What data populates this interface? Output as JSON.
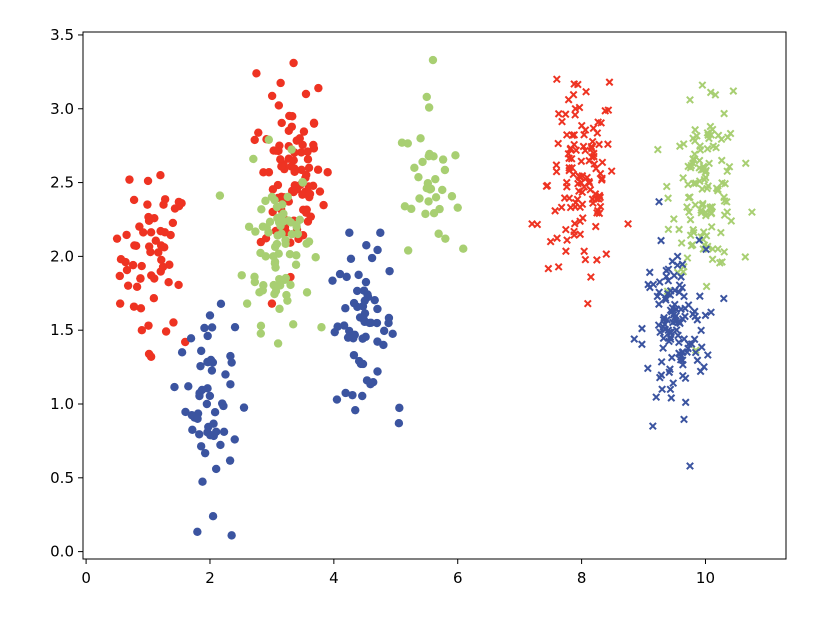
{
  "chart_data": {
    "type": "scatter",
    "title": "",
    "xlabel": "",
    "ylabel": "",
    "xlim": [
      -0.05,
      11.3
    ],
    "ylim": [
      -0.05,
      3.52
    ],
    "xticks": [
      "0",
      "2",
      "4",
      "6",
      "8",
      "10"
    ],
    "xtick_values": [
      0,
      2,
      4,
      6,
      8,
      10
    ],
    "yticks": [
      "0.0",
      "0.5",
      "1.0",
      "1.5",
      "2.0",
      "2.5",
      "3.0",
      "3.5"
    ],
    "ytick_values": [
      0.0,
      0.5,
      1.0,
      1.5,
      2.0,
      2.5,
      3.0,
      3.5
    ],
    "grid": false,
    "legend": "none",
    "series": [
      {
        "color": "#ee3322",
        "marker": "circle",
        "center": [
          1.1,
          2.0
        ],
        "spread": [
          0.3,
          0.28
        ],
        "count": 60,
        "x": [
          0.5,
          0.7,
          1.2,
          1.5,
          1.05,
          0.9,
          1.6,
          0.55,
          1.25,
          1.1
        ],
        "y": [
          2.12,
          2.52,
          2.55,
          2.34,
          1.32,
          1.5,
          1.42,
          1.68,
          2.35,
          1.85
        ]
      },
      {
        "color": "#ee3322",
        "marker": "circle",
        "center": [
          3.3,
          2.5
        ],
        "spread": [
          0.28,
          0.3
        ],
        "count": 90,
        "x": [
          2.75,
          3.35,
          3.55,
          3.75,
          3.3,
          3.0,
          3.9,
          3.45,
          3.2,
          3.6
        ],
        "y": [
          3.24,
          3.31,
          3.1,
          3.14,
          1.86,
          1.68,
          2.57,
          2.8,
          2.4,
          2.6
        ]
      },
      {
        "color": "#a8cf72",
        "marker": "circle",
        "center": [
          3.1,
          2.1
        ],
        "spread": [
          0.3,
          0.3
        ],
        "count": 75,
        "x": [
          2.7,
          2.95,
          3.5,
          3.8,
          3.1,
          3.25,
          2.6,
          3.4,
          2.9,
          3.6
        ],
        "y": [
          2.66,
          2.79,
          2.5,
          1.52,
          1.41,
          1.7,
          1.68,
          2.2,
          2.0,
          2.1
        ]
      },
      {
        "color": "#a8cf72",
        "marker": "circle",
        "center": [
          5.55,
          2.5
        ],
        "spread": [
          0.22,
          0.25
        ],
        "count": 35,
        "x": [
          5.6,
          5.5,
          5.1,
          5.2,
          5.8,
          6.0,
          5.4,
          5.75,
          5.3,
          5.65
        ],
        "y": [
          3.33,
          3.08,
          2.77,
          2.04,
          2.12,
          2.33,
          2.8,
          2.45,
          2.6,
          2.4
        ]
      },
      {
        "color": "#3b54a0",
        "marker": "circle",
        "center": [
          2.0,
          1.05
        ],
        "spread": [
          0.22,
          0.3
        ],
        "count": 55,
        "x": [
          2.0,
          2.35,
          2.05,
          1.55,
          2.1,
          1.65,
          2.4,
          1.8,
          2.25,
          1.95
        ],
        "y": [
          1.6,
          0.11,
          0.24,
          1.35,
          0.56,
          1.12,
          0.76,
          0.9,
          1.2,
          1.0
        ]
      },
      {
        "color": "#3b54a0",
        "marker": "circle",
        "center": [
          4.45,
          1.55
        ],
        "spread": [
          0.3,
          0.25
        ],
        "count": 60,
        "x": [
          4.25,
          4.75,
          4.1,
          4.05,
          5.05,
          4.3,
          4.5,
          4.8,
          4.6,
          4.9
        ],
        "y": [
          2.16,
          2.16,
          1.88,
          1.03,
          0.87,
          1.06,
          1.7,
          1.4,
          1.55,
          1.9
        ]
      }
    ],
    "series_x": [
      {
        "color": "#ee3322",
        "marker": "x",
        "center": [
          8.0,
          2.5
        ],
        "spread": [
          0.3,
          0.35
        ],
        "count": 120,
        "x": [
          7.6,
          8.45,
          7.2,
          8.75,
          8.1,
          8.15,
          7.9,
          7.5,
          8.3,
          7.8
        ],
        "y": [
          3.2,
          3.18,
          2.22,
          2.22,
          1.68,
          1.86,
          3.0,
          2.1,
          2.4,
          2.6
        ]
      },
      {
        "color": "#a8cf72",
        "marker": "x",
        "center": [
          10.0,
          2.45
        ],
        "spread": [
          0.3,
          0.3
        ],
        "count": 120,
        "x": [
          9.95,
          10.45,
          9.75,
          10.75,
          9.65,
          10.2,
          9.9,
          10.3,
          9.8,
          10.1
        ],
        "y": [
          3.16,
          3.12,
          3.06,
          2.3,
          1.93,
          2.05,
          2.6,
          2.4,
          2.8,
          2.2
        ]
      },
      {
        "color": "#3b54a0",
        "marker": "x",
        "center": [
          9.5,
          1.5
        ],
        "spread": [
          0.28,
          0.3
        ],
        "count": 120,
        "x": [
          9.25,
          9.9,
          9.55,
          9.15,
          9.75,
          8.85,
          9.4,
          9.6,
          10.0,
          9.3
        ],
        "y": [
          2.37,
          2.11,
          2.0,
          0.85,
          0.58,
          1.44,
          1.5,
          1.3,
          1.6,
          1.1
        ]
      }
    ]
  }
}
